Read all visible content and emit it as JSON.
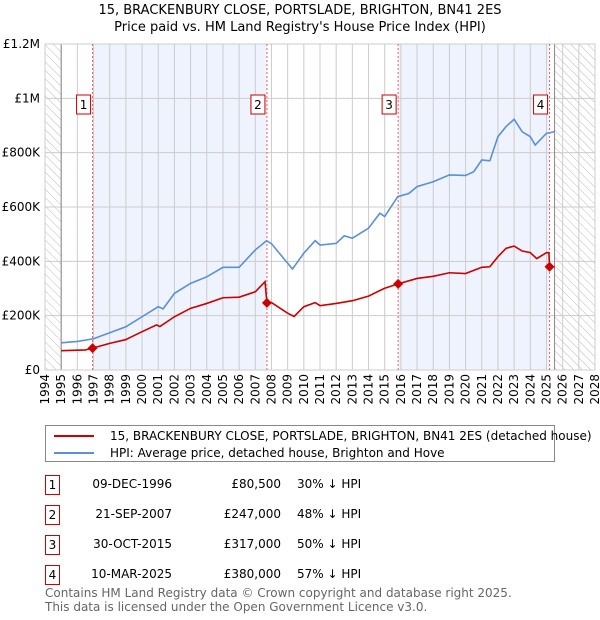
{
  "chart_data": {
    "type": "line",
    "title": "15, BRACKENBURY CLOSE, PORTSLADE, BRIGHTON, BN41 2ES",
    "subtitle": "Price paid vs. HM Land Registry's House Price Index (HPI)",
    "xlim": [
      1994,
      2028
    ],
    "ylim": [
      0,
      1200000
    ],
    "x_ticks": [
      "1994",
      "1995",
      "1996",
      "1997",
      "1998",
      "1999",
      "2000",
      "2001",
      "2002",
      "2003",
      "2004",
      "2005",
      "2006",
      "2007",
      "2008",
      "2009",
      "2010",
      "2011",
      "2012",
      "2013",
      "2014",
      "2015",
      "2016",
      "2017",
      "2018",
      "2019",
      "2020",
      "2021",
      "2022",
      "2023",
      "2024",
      "2025",
      "2026",
      "2027",
      "2028"
    ],
    "y_ticks": [
      {
        "v": 0,
        "label": "£0"
      },
      {
        "v": 200000,
        "label": "£200K"
      },
      {
        "v": 400000,
        "label": "£400K"
      },
      {
        "v": 600000,
        "label": "£600K"
      },
      {
        "v": 800000,
        "label": "£800K"
      },
      {
        "v": 1000000,
        "label": "£1M"
      },
      {
        "v": 1200000,
        "label": "£1.2M"
      }
    ],
    "grid": true,
    "legend_position": "below",
    "series": [
      {
        "name": "15, BRACKENBURY CLOSE, PORTSLADE, BRIGHTON, BN41 2ES (detached house)",
        "color": "#cc0000",
        "points": [
          [
            1995,
            71000
          ],
          [
            1996,
            73000
          ],
          [
            1996.5,
            74000
          ],
          [
            1996.94,
            80500
          ],
          [
            1998,
            98000
          ],
          [
            1999,
            112000
          ],
          [
            2000,
            141000
          ],
          [
            2000.9,
            166000
          ],
          [
            2001.1,
            160000
          ],
          [
            2002,
            196000
          ],
          [
            2003,
            227000
          ],
          [
            2004,
            245000
          ],
          [
            2005,
            266000
          ],
          [
            2006,
            268000
          ],
          [
            2007,
            288000
          ],
          [
            2007.6,
            325000
          ],
          [
            2007.72,
            247000
          ],
          [
            2008,
            248000
          ],
          [
            2009,
            209000
          ],
          [
            2009.4,
            197000
          ],
          [
            2010,
            233000
          ],
          [
            2010.7,
            248000
          ],
          [
            2011,
            237000
          ],
          [
            2012,
            245000
          ],
          [
            2013,
            255000
          ],
          [
            2014,
            272000
          ],
          [
            2015,
            301000
          ],
          [
            2015.83,
            317000
          ],
          [
            2017,
            337000
          ],
          [
            2018,
            345000
          ],
          [
            2019,
            358000
          ],
          [
            2020,
            355000
          ],
          [
            2021,
            378000
          ],
          [
            2021.5,
            380000
          ],
          [
            2022,
            417000
          ],
          [
            2022.5,
            448000
          ],
          [
            2023,
            456000
          ],
          [
            2023.5,
            438000
          ],
          [
            2024,
            432000
          ],
          [
            2024.4,
            410000
          ],
          [
            2025,
            432000
          ],
          [
            2025.15,
            432000
          ],
          [
            2025.19,
            380000
          ],
          [
            2025.5,
            380000
          ]
        ]
      },
      {
        "name": "HPI: Average price, detached house, Brighton and Hove",
        "color": "#5b8fd6",
        "points": [
          [
            1995,
            100000
          ],
          [
            1996,
            105000
          ],
          [
            1997,
            115000
          ],
          [
            1998,
            137000
          ],
          [
            1999,
            159000
          ],
          [
            2000,
            196000
          ],
          [
            2001,
            233000
          ],
          [
            2001.3,
            225000
          ],
          [
            2002,
            282000
          ],
          [
            2003,
            319000
          ],
          [
            2004,
            343000
          ],
          [
            2005,
            378000
          ],
          [
            2006,
            378000
          ],
          [
            2007,
            442000
          ],
          [
            2007.7,
            476000
          ],
          [
            2008,
            465000
          ],
          [
            2009,
            393000
          ],
          [
            2009.3,
            372000
          ],
          [
            2010,
            430000
          ],
          [
            2010.7,
            476000
          ],
          [
            2011,
            460000
          ],
          [
            2012,
            466000
          ],
          [
            2012.5,
            494000
          ],
          [
            2013,
            485000
          ],
          [
            2014,
            522000
          ],
          [
            2014.7,
            577000
          ],
          [
            2015,
            565000
          ],
          [
            2015.8,
            638000
          ],
          [
            2016.5,
            650000
          ],
          [
            2017,
            675000
          ],
          [
            2018,
            693000
          ],
          [
            2019,
            718000
          ],
          [
            2020,
            716000
          ],
          [
            2020.5,
            730000
          ],
          [
            2021,
            773000
          ],
          [
            2021.5,
            770000
          ],
          [
            2022,
            859000
          ],
          [
            2022.5,
            896000
          ],
          [
            2023,
            923000
          ],
          [
            2023.5,
            877000
          ],
          [
            2024,
            859000
          ],
          [
            2024.3,
            828000
          ],
          [
            2025,
            871000
          ],
          [
            2025.5,
            877000
          ]
        ]
      }
    ],
    "sales": [
      {
        "n": "1",
        "x": 1996.94,
        "value": 80500,
        "date": "09-DEC-1996",
        "price": "£80,500",
        "hpi": "30% ↓ HPI"
      },
      {
        "n": "2",
        "x": 2007.72,
        "value": 247000,
        "date": "21-SEP-2007",
        "price": "£247,000",
        "hpi": "48% ↓ HPI"
      },
      {
        "n": "3",
        "x": 2015.83,
        "value": 317000,
        "date": "30-OCT-2015",
        "price": "£317,000",
        "hpi": "50% ↓ HPI"
      },
      {
        "n": "4",
        "x": 2025.19,
        "value": 380000,
        "date": "10-MAR-2025",
        "price": "£380,000",
        "hpi": "57% ↓ HPI"
      }
    ],
    "shaded_ranges": [
      [
        1996.94,
        2007.72
      ],
      [
        2015.83,
        2025.19
      ]
    ],
    "data_range": [
      1995,
      2025.5
    ]
  },
  "footer": {
    "line1": "Contains HM Land Registry data © Crown copyright and database right 2025.",
    "line2": "This data is licensed under the Open Government Licence v3.0."
  },
  "colors": {
    "red": "#cc0000",
    "blue": "#5b8fd6",
    "shade": "#eef3fd",
    "grid": "#cccccc"
  }
}
